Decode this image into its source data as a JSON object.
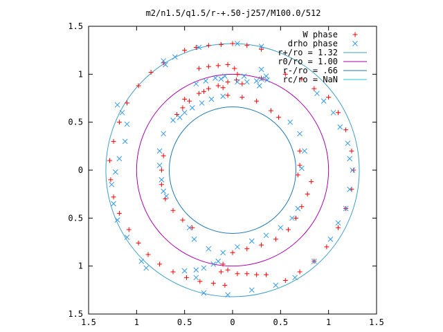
{
  "chart_data": {
    "type": "scatter",
    "title": "m2/n1.5/q1.5/r-+.50-j257/M100.0/512",
    "xlim": [
      -1.5,
      1.5
    ],
    "ylim": [
      -1.5,
      1.5
    ],
    "x_ticks": [
      -1.5,
      -1,
      -0.5,
      0,
      0.5,
      1,
      1.5
    ],
    "x_tick_labels": [
      "1.5",
      "1",
      "0.5",
      "0",
      "0.5",
      "1",
      "1.5"
    ],
    "y_ticks": [
      1.5,
      1,
      0.5,
      0,
      -0.5,
      -1,
      -1.5
    ],
    "y_tick_labels": [
      "1.5",
      "1",
      "0.5",
      "0",
      "0.5",
      "1",
      "1.5"
    ],
    "grid": false,
    "legend_position": "top-right",
    "legend": [
      {
        "label": "W phase",
        "kind": "marker",
        "symbol": "plus",
        "color": "#ff0000"
      },
      {
        "label": "drho phase",
        "kind": "marker",
        "symbol": "cross",
        "color": "#3399ee"
      },
      {
        "label": "r+/ro = 1.32",
        "kind": "line",
        "color": "#3a9fc6"
      },
      {
        "label": "r0/ro = 1.00",
        "kind": "line",
        "color": "#aa00aa"
      },
      {
        "label": "r-/ro = .66",
        "kind": "line",
        "color": "#1f78b4"
      },
      {
        "label": "rc/ro = NaN",
        "kind": "line",
        "color": "#22cccc"
      }
    ],
    "circles": [
      {
        "name": "r+/ro = 1.32",
        "r": 1.32,
        "color": "#3a9fc6"
      },
      {
        "name": "r0/ro = 1.00",
        "r": 1.0,
        "color": "#aa00aa"
      },
      {
        "name": "r-/ro = .66",
        "r": 0.66,
        "color": "#1f78b4"
      }
    ],
    "series": [
      {
        "name": "W phase",
        "color": "#ff0000",
        "points": [
          [
            -0.35,
            1.06
          ],
          [
            -0.25,
            1.08
          ],
          [
            -0.15,
            1.09
          ],
          [
            -0.05,
            1.1
          ],
          [
            0.02,
            1.06
          ],
          [
            0.05,
            1.0
          ],
          [
            0.04,
            0.94
          ],
          [
            -0.05,
            0.92
          ],
          [
            -0.15,
            0.88
          ],
          [
            -0.25,
            0.85
          ],
          [
            -0.35,
            0.8
          ],
          [
            -0.45,
            0.72
          ],
          [
            -0.52,
            0.65
          ],
          [
            -0.58,
            0.58
          ],
          [
            -0.5,
            1.25
          ],
          [
            -0.38,
            1.28
          ],
          [
            -0.25,
            1.3
          ],
          [
            -0.12,
            1.31
          ],
          [
            0.0,
            1.32
          ],
          [
            0.15,
            1.3
          ],
          [
            0.3,
            1.26
          ],
          [
            -0.72,
            1.12
          ],
          [
            -0.85,
            1.02
          ],
          [
            -0.98,
            0.88
          ],
          [
            -1.1,
            0.7
          ],
          [
            -1.18,
            0.5
          ],
          [
            -1.24,
            0.3
          ],
          [
            -1.28,
            0.1
          ],
          [
            -1.27,
            -0.1
          ],
          [
            -1.24,
            -0.28
          ],
          [
            -1.18,
            -0.45
          ],
          [
            -1.08,
            -0.62
          ],
          [
            -0.98,
            -0.76
          ],
          [
            -0.88,
            -0.88
          ],
          [
            -0.76,
            -0.98
          ],
          [
            -0.62,
            -1.06
          ],
          [
            -0.48,
            -1.12
          ],
          [
            -0.34,
            -1.16
          ],
          [
            -0.2,
            -1.18
          ],
          [
            -0.08,
            -1.2
          ],
          [
            -0.1,
            -0.98
          ],
          [
            -0.05,
            -1.04
          ],
          [
            0.05,
            -1.08
          ],
          [
            0.15,
            -1.08
          ],
          [
            0.25,
            -1.09
          ],
          [
            0.35,
            -1.09
          ],
          [
            -0.12,
            -1.06
          ],
          [
            0.0,
            -0.86
          ],
          [
            0.15,
            -0.82
          ],
          [
            0.3,
            -0.78
          ],
          [
            0.45,
            -0.72
          ],
          [
            0.58,
            -0.62
          ],
          [
            0.66,
            -0.5
          ],
          [
            0.72,
            -0.38
          ],
          [
            0.78,
            -0.25
          ],
          [
            0.82,
            -0.12
          ],
          [
            0.55,
            -1.15
          ],
          [
            0.7,
            -1.06
          ],
          [
            0.85,
            -0.95
          ],
          [
            0.98,
            -0.8
          ],
          [
            1.1,
            -0.6
          ],
          [
            1.18,
            -0.4
          ],
          [
            1.24,
            -0.2
          ],
          [
            1.26,
            0.0
          ],
          [
            1.24,
            0.2
          ],
          [
            1.18,
            0.42
          ],
          [
            1.1,
            0.6
          ],
          [
            1.0,
            0.76
          ],
          [
            -0.72,
            0.15
          ],
          [
            -0.74,
            0.0
          ],
          [
            -0.74,
            -0.15
          ],
          [
            -0.7,
            -0.3
          ],
          [
            -0.62,
            -0.42
          ],
          [
            -0.52,
            -0.52
          ],
          [
            -0.42,
            -0.6
          ],
          [
            0.7,
            0.2
          ],
          [
            0.7,
            0.05
          ],
          [
            0.68,
            -0.05
          ],
          [
            0.48,
            0.55
          ],
          [
            0.4,
            0.62
          ],
          [
            0.25,
            0.72
          ],
          [
            0.1,
            0.76
          ],
          [
            -0.05,
            0.78
          ],
          [
            -0.5,
            0.74
          ],
          [
            -0.3,
            0.82
          ],
          [
            -0.1,
            0.86
          ],
          [
            0.1,
            0.9
          ],
          [
            0.3,
            0.96
          ],
          [
            0.55,
            1.0
          ],
          [
            0.72,
            0.95
          ],
          [
            0.85,
            0.85
          ]
        ]
      },
      {
        "name": "drho phase",
        "color": "#3399ee",
        "points": [
          [
            -0.38,
            0.9
          ],
          [
            -0.28,
            0.93
          ],
          [
            -0.18,
            0.96
          ],
          [
            -0.08,
            0.98
          ],
          [
            0.05,
            0.92
          ],
          [
            0.15,
            0.92
          ],
          [
            0.25,
            0.93
          ],
          [
            0.3,
            0.95
          ],
          [
            0.35,
            0.98
          ],
          [
            0.3,
            1.05
          ],
          [
            -0.5,
            0.6
          ],
          [
            -0.42,
            0.65
          ],
          [
            -0.32,
            0.7
          ],
          [
            -0.22,
            0.74
          ],
          [
            -0.1,
            0.77
          ],
          [
            -0.62,
            0.52
          ],
          [
            -0.55,
            0.55
          ],
          [
            -0.72,
            0.38
          ],
          [
            -0.76,
            0.2
          ],
          [
            -0.76,
            0.05
          ],
          [
            -0.74,
            -0.1
          ],
          [
            -0.72,
            -0.22
          ],
          [
            -0.69,
            -0.27
          ],
          [
            -1.2,
            0.68
          ],
          [
            -1.15,
            0.6
          ],
          [
            -1.1,
            0.48
          ],
          [
            -1.12,
            0.3
          ],
          [
            -1.18,
            0.12
          ],
          [
            -1.22,
            -0.02
          ],
          [
            -1.26,
            -0.15
          ],
          [
            -1.24,
            -0.35
          ],
          [
            -1.2,
            -0.52
          ],
          [
            -1.1,
            -0.7
          ],
          [
            -0.95,
            -0.95
          ],
          [
            -0.9,
            -1.02
          ],
          [
            -0.5,
            -1.05
          ],
          [
            -0.38,
            -1.04
          ],
          [
            -0.3,
            -1.02
          ],
          [
            -0.2,
            -0.98
          ],
          [
            -0.15,
            -0.95
          ],
          [
            -0.38,
            -1.12
          ],
          [
            -0.45,
            -0.6
          ],
          [
            -0.4,
            -0.72
          ],
          [
            -0.25,
            -0.82
          ],
          [
            -0.1,
            -0.86
          ],
          [
            0.05,
            -0.8
          ],
          [
            0.2,
            -0.74
          ],
          [
            0.35,
            -0.68
          ],
          [
            0.5,
            -0.6
          ],
          [
            0.62,
            -0.5
          ],
          [
            0.68,
            -0.4
          ],
          [
            -0.12,
            0.95
          ],
          [
            0.12,
            0.98
          ],
          [
            0.36,
            0.94
          ],
          [
            0.28,
            0.88
          ],
          [
            0.6,
            0.5
          ],
          [
            0.7,
            0.38
          ],
          [
            0.75,
            0.2
          ],
          [
            0.72,
            0.02
          ],
          [
            1.25,
            0.0
          ],
          [
            1.22,
            -0.2
          ],
          [
            1.18,
            -0.4
          ],
          [
            1.1,
            -0.55
          ],
          [
            1.02,
            -0.72
          ],
          [
            0.85,
            -0.95
          ],
          [
            0.65,
            -1.12
          ],
          [
            0.45,
            -1.2
          ],
          [
            0.2,
            -1.25
          ],
          [
            -0.05,
            -1.3
          ],
          [
            -0.3,
            -1.28
          ],
          [
            0.88,
            0.8
          ],
          [
            0.95,
            0.72
          ],
          [
            1.05,
            0.6
          ],
          [
            1.12,
            0.45
          ],
          [
            1.2,
            0.28
          ],
          [
            1.22,
            0.12
          ],
          [
            -0.7,
            1.1
          ],
          [
            -0.72,
            1.14
          ],
          [
            -0.6,
            1.18
          ],
          [
            -0.35,
            1.28
          ],
          [
            0.05,
            1.32
          ],
          [
            0.3,
            1.29
          ]
        ]
      }
    ]
  }
}
